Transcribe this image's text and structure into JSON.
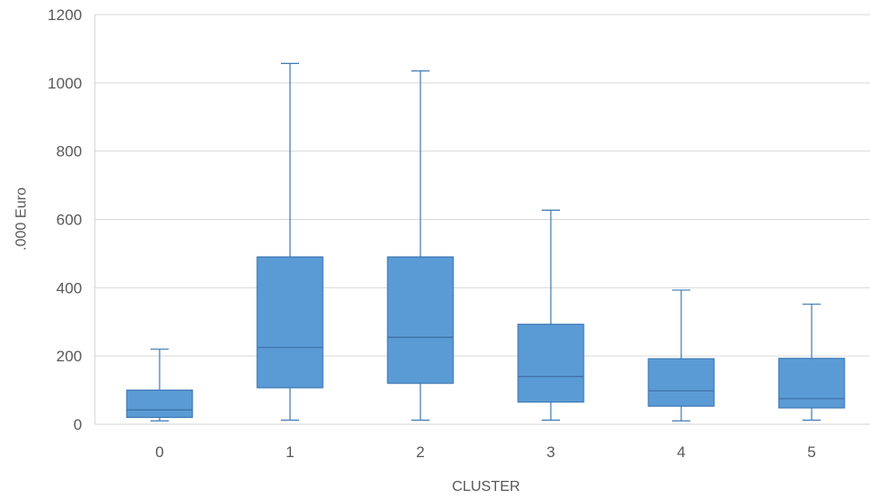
{
  "chart_data": {
    "type": "box",
    "title": "",
    "xlabel": "CLUSTER",
    "ylabel": ".000 Euro",
    "ylim": [
      0,
      1200
    ],
    "yticks": [
      0,
      200,
      400,
      600,
      800,
      1000,
      1200
    ],
    "grid": true,
    "legend": "none",
    "categories": [
      "0",
      "1",
      "2",
      "3",
      "4",
      "5"
    ],
    "boxes": [
      {
        "category": "0",
        "min": 10,
        "q1": 20,
        "median": 42,
        "q3": 100,
        "max": 220
      },
      {
        "category": "1",
        "min": 12,
        "q1": 107,
        "median": 225,
        "q3": 490,
        "max": 1057
      },
      {
        "category": "2",
        "min": 12,
        "q1": 120,
        "median": 255,
        "q3": 490,
        "max": 1035
      },
      {
        "category": "3",
        "min": 12,
        "q1": 65,
        "median": 140,
        "q3": 293,
        "max": 627
      },
      {
        "category": "4",
        "min": 10,
        "q1": 53,
        "median": 98,
        "q3": 192,
        "max": 393
      },
      {
        "category": "5",
        "min": 12,
        "q1": 48,
        "median": 75,
        "q3": 193,
        "max": 352
      }
    ],
    "colors": {
      "box_fill": "#5b9bd5",
      "box_stroke": "#3f79b5",
      "grid": "#d9d9d9",
      "text": "#595959"
    }
  }
}
